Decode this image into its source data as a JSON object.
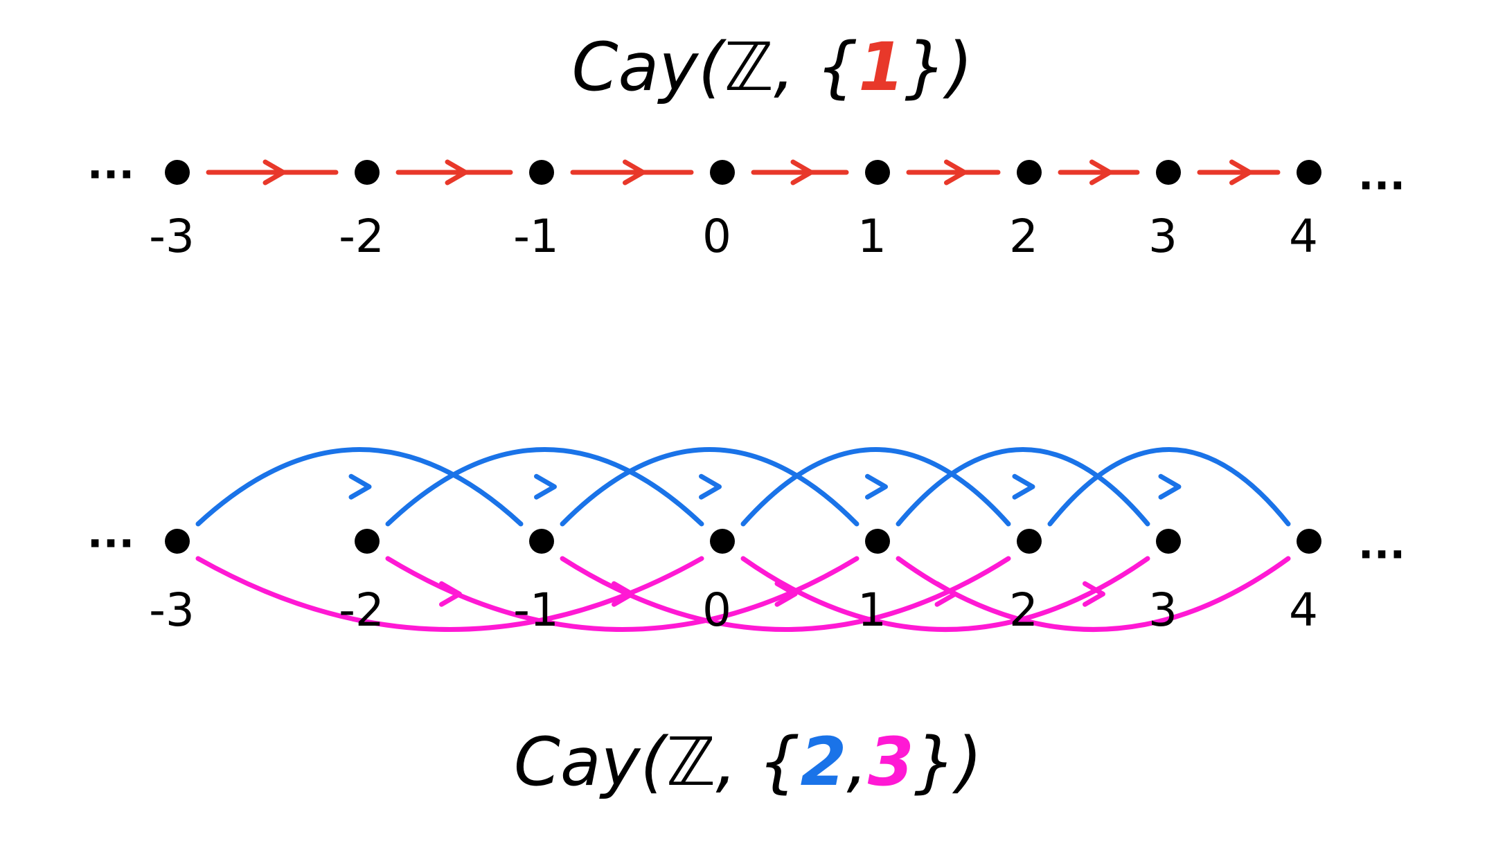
{
  "diagrams": [
    {
      "title": {
        "prefix": "Cay(ℤ, {",
        "separator": ",",
        "suffix": "})"
      },
      "generators": [
        {
          "label": "1",
          "color": "#e8382a"
        }
      ],
      "nodes": [
        "-3",
        "-2",
        "-1",
        "0",
        "1",
        "2",
        "3",
        "4"
      ],
      "ellipsis_left": "...",
      "ellipsis_right": "..."
    },
    {
      "title": {
        "prefix": "Cay(ℤ, {",
        "separator": ",",
        "suffix": "})"
      },
      "generators": [
        {
          "label": "2",
          "color": "#1a73e8"
        },
        {
          "label": "3",
          "color": "#ff19d4"
        }
      ],
      "nodes": [
        "-3",
        "-2",
        "-1",
        "0",
        "1",
        "2",
        "3",
        "4"
      ],
      "ellipsis_left": "...",
      "ellipsis_right": "..."
    }
  ]
}
